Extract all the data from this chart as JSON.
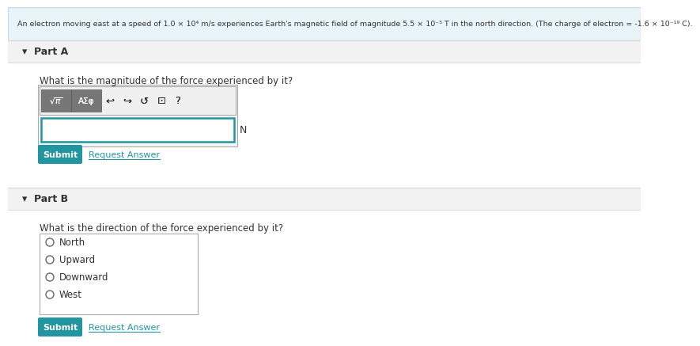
{
  "header_text": "An electron moving east at a speed of 1.0 × 10⁴ m/s experiences Earth's magnetic field of magnitude 5.5 × 10⁻⁵ T in the north direction. (The charge of electron = -1.6 × 10⁻¹⁹ C).",
  "header_bg": "#e8f4f8",
  "header_border": "#c8dce8",
  "part_a_label": "▾  Part A",
  "part_a_question": "What is the magnitude of the force experienced by it?",
  "part_b_label": "▾  Part B",
  "part_b_question": "What is the direction of the force experienced by it?",
  "part_b_options": [
    "North",
    "Upward",
    "Downward",
    "West"
  ],
  "submit_bg": "#2196a0",
  "submit_text_color": "#ffffff",
  "submit_label": "Submit",
  "request_answer_label": "Request Answer",
  "request_answer_color": "#2196a0",
  "unit_label": "N",
  "section_bg": "#f2f2f2",
  "section_border": "#dddddd",
  "white_bg": "#ffffff",
  "text_color": "#333333",
  "input_border": "#2196a0",
  "toolbar_btn_bg": "#777777",
  "toolbar_btn_border": "#555555",
  "toolbar_bg": "#f0f0f0",
  "toolbar_border": "#aaaaaa",
  "radio_border": "#666666",
  "options_box_border": "#aaaaaa"
}
